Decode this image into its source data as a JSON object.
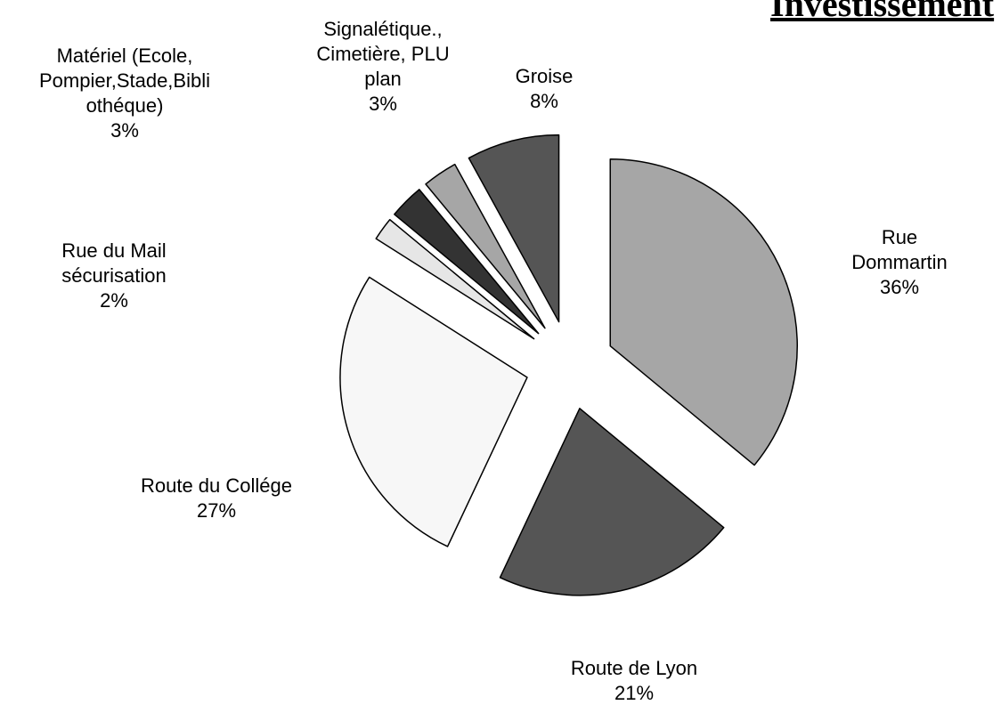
{
  "chart_data": {
    "type": "pie",
    "title": "Investissement",
    "categories": [
      "Rue Dommartin",
      "Route de Lyon",
      "Route du Collége",
      "Rue du Mail\nsécurisation",
      "Matériel (Ecole,\nPompier,Stade,Bibli\nothéque)",
      "Signalétique.,\nCimetière, PLU\nplan",
      "Groise"
    ],
    "values": [
      36,
      21,
      27,
      2,
      3,
      3,
      8
    ],
    "value_labels": [
      "36%",
      "21%",
      "27%",
      "2%",
      "3%",
      "3%",
      "8%"
    ],
    "colors": [
      "#a6a6a6",
      "#555555",
      "#f7f7f7",
      "#e6e6e6",
      "#333333",
      "#a6a6a6",
      "#555555"
    ]
  }
}
